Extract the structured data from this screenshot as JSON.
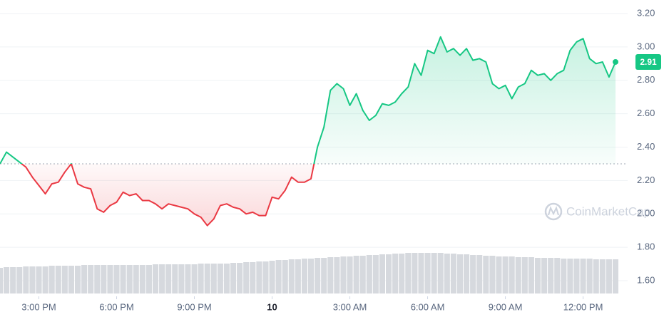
{
  "chart_data": {
    "type": "line",
    "xticks": [
      {
        "value": 6,
        "label": "3:00 PM"
      },
      {
        "value": 18,
        "label": "6:00 PM"
      },
      {
        "value": 30,
        "label": "9:00 PM"
      },
      {
        "value": 42,
        "label": "10"
      },
      {
        "value": 54,
        "label": "3:00 AM"
      },
      {
        "value": 66,
        "label": "6:00 AM"
      },
      {
        "value": 78,
        "label": "9:00 AM"
      },
      {
        "value": 90,
        "label": "12:00 PM"
      }
    ],
    "xlim": [
      0,
      95
    ],
    "values": [
      2.3,
      2.37,
      2.34,
      2.31,
      2.28,
      2.22,
      2.17,
      2.12,
      2.18,
      2.19,
      2.25,
      2.3,
      2.18,
      2.16,
      2.15,
      2.03,
      2.01,
      2.05,
      2.07,
      2.13,
      2.11,
      2.12,
      2.08,
      2.08,
      2.06,
      2.03,
      2.06,
      2.05,
      2.04,
      2.03,
      2.0,
      1.98,
      1.93,
      1.97,
      2.05,
      2.06,
      2.04,
      2.03,
      2.0,
      2.01,
      1.99,
      1.99,
      2.1,
      2.09,
      2.14,
      2.22,
      2.19,
      2.19,
      2.21,
      2.4,
      2.52,
      2.74,
      2.78,
      2.75,
      2.65,
      2.72,
      2.62,
      2.56,
      2.59,
      2.66,
      2.65,
      2.67,
      2.72,
      2.76,
      2.9,
      2.83,
      2.98,
      2.96,
      3.06,
      2.97,
      2.99,
      2.95,
      2.99,
      2.92,
      2.93,
      2.91,
      2.78,
      2.75,
      2.77,
      2.69,
      2.76,
      2.78,
      2.86,
      2.83,
      2.84,
      2.8,
      2.84,
      2.86,
      2.98,
      3.03,
      3.05,
      2.93,
      2.9,
      2.91,
      2.82,
      2.91
    ],
    "baseline": 2.3,
    "up_color": "#16c784",
    "down_color": "#ea3943",
    "ylim": [
      1.6,
      3.2
    ],
    "yticks": [
      {
        "value": 1.6,
        "label": "1.60"
      },
      {
        "value": 1.8,
        "label": "1.80"
      },
      {
        "value": 2.0,
        "label": "2.00"
      },
      {
        "value": 2.2,
        "label": "2.20"
      },
      {
        "value": 2.4,
        "label": "2.40"
      },
      {
        "value": 2.6,
        "label": "2.60"
      },
      {
        "value": 2.8,
        "label": "2.80"
      },
      {
        "value": 3.0,
        "label": "3.00"
      },
      {
        "value": 3.2,
        "label": "3.20"
      }
    ],
    "grid": true,
    "volume": [
      36,
      37,
      37,
      37,
      38,
      38,
      38,
      38,
      39,
      39,
      39,
      39,
      39,
      40,
      40,
      40,
      40,
      40,
      40,
      40,
      40,
      40,
      40,
      40,
      41,
      41,
      41,
      41,
      41,
      41,
      41,
      42,
      42,
      42,
      42,
      42,
      43,
      43,
      44,
      44,
      45,
      45,
      46,
      47,
      47,
      48,
      48,
      49,
      49,
      50,
      50,
      51,
      51,
      52,
      52,
      53,
      53,
      54,
      54,
      55,
      55,
      56,
      56,
      57,
      57,
      57,
      57,
      57,
      57,
      56,
      56,
      55,
      55,
      54,
      54,
      53,
      53,
      52,
      52,
      52,
      51,
      51,
      51,
      50,
      50,
      50,
      50,
      49,
      49,
      49,
      49,
      49,
      48,
      48,
      48,
      48
    ],
    "volume_ylim": [
      0,
      100
    ],
    "volume_color": "#d6d9de",
    "watermark": "CoinMarketCap"
  }
}
